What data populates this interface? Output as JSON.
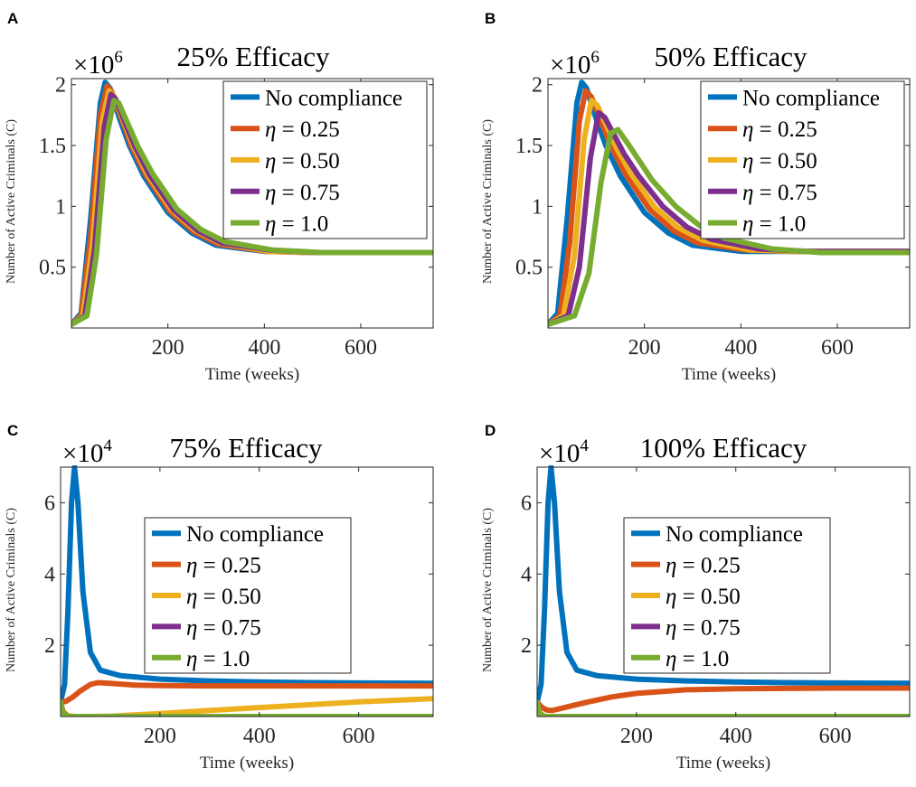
{
  "x_label": "Time (weeks)",
  "y_label": "Number of Active Criminals (C)",
  "colors": {
    "no_compliance": "#0072BD",
    "eta_025": "#D95319",
    "eta_050": "#EDB120",
    "eta_075": "#7E2F8E",
    "eta_100": "#77AC30"
  },
  "chart_data": [
    {
      "panel": "A",
      "type": "line",
      "title": "25% Efficacy",
      "scale_label": "×10",
      "scale_exponent": "6",
      "xlabel": "Time (weeks)",
      "ylabel": "Number of Active Criminals (C)",
      "xlim": [
        0,
        750
      ],
      "ylim": [
        0,
        2.05
      ],
      "xticks": [
        "200",
        "400",
        "600"
      ],
      "yticks": [
        "0.5",
        "1",
        "1.5",
        "2"
      ],
      "legend_position": "top-right",
      "series": [
        {
          "name": "No compliance",
          "color": "#0072BD",
          "x": [
            0,
            20,
            40,
            60,
            70,
            80,
            100,
            120,
            150,
            200,
            250,
            300,
            400,
            500,
            600,
            750
          ],
          "y": [
            0.03,
            0.12,
            0.9,
            1.85,
            2.02,
            1.97,
            1.72,
            1.5,
            1.25,
            0.95,
            0.78,
            0.68,
            0.63,
            0.62,
            0.62,
            0.62
          ]
        },
        {
          "name": "η = 0.25",
          "color": "#D95319",
          "x": [
            0,
            20,
            40,
            60,
            74,
            84,
            104,
            124,
            154,
            204,
            254,
            304,
            404,
            504,
            604,
            750
          ],
          "y": [
            0.03,
            0.1,
            0.75,
            1.75,
            1.99,
            1.94,
            1.72,
            1.5,
            1.26,
            0.96,
            0.79,
            0.69,
            0.63,
            0.62,
            0.62,
            0.62
          ]
        },
        {
          "name": "η = 0.50",
          "color": "#EDB120",
          "x": [
            0,
            24,
            44,
            64,
            78,
            88,
            108,
            128,
            158,
            208,
            258,
            308,
            408,
            508,
            608,
            750
          ],
          "y": [
            0.03,
            0.1,
            0.7,
            1.7,
            1.95,
            1.91,
            1.7,
            1.5,
            1.26,
            0.97,
            0.8,
            0.7,
            0.63,
            0.62,
            0.62,
            0.62
          ]
        },
        {
          "name": "η = 0.75",
          "color": "#7E2F8E",
          "x": [
            0,
            28,
            48,
            68,
            82,
            92,
            112,
            132,
            162,
            212,
            262,
            312,
            412,
            512,
            612,
            750
          ],
          "y": [
            0.03,
            0.1,
            0.65,
            1.65,
            1.92,
            1.88,
            1.68,
            1.49,
            1.26,
            0.97,
            0.8,
            0.7,
            0.64,
            0.62,
            0.62,
            0.62
          ]
        },
        {
          "name": "η = 1.0",
          "color": "#77AC30",
          "x": [
            0,
            32,
            52,
            72,
            88,
            98,
            118,
            138,
            168,
            218,
            268,
            318,
            418,
            518,
            618,
            750
          ],
          "y": [
            0.03,
            0.1,
            0.6,
            1.55,
            1.87,
            1.85,
            1.67,
            1.49,
            1.27,
            0.98,
            0.81,
            0.71,
            0.64,
            0.62,
            0.62,
            0.62
          ]
        }
      ]
    },
    {
      "panel": "B",
      "type": "line",
      "title": "50% Efficacy",
      "scale_label": "×10",
      "scale_exponent": "6",
      "xlabel": "Time (weeks)",
      "ylabel": "Number of Active Criminals (C)",
      "xlim": [
        0,
        750
      ],
      "ylim": [
        0,
        2.05
      ],
      "xticks": [
        "200",
        "400",
        "600"
      ],
      "yticks": [
        "0.5",
        "1",
        "1.5",
        "2"
      ],
      "legend_position": "top-right",
      "series": [
        {
          "name": "No compliance",
          "color": "#0072BD",
          "x": [
            0,
            20,
            40,
            60,
            70,
            80,
            100,
            120,
            150,
            200,
            250,
            300,
            400,
            500,
            600,
            750
          ],
          "y": [
            0.03,
            0.12,
            0.9,
            1.85,
            2.02,
            1.97,
            1.72,
            1.5,
            1.25,
            0.95,
            0.78,
            0.68,
            0.63,
            0.63,
            0.63,
            0.63
          ]
        },
        {
          "name": "η = 0.25",
          "color": "#D95319",
          "x": [
            0,
            25,
            45,
            65,
            78,
            90,
            110,
            130,
            160,
            210,
            260,
            310,
            410,
            510,
            610,
            750
          ],
          "y": [
            0.03,
            0.1,
            0.7,
            1.7,
            1.95,
            1.9,
            1.7,
            1.5,
            1.27,
            0.98,
            0.8,
            0.7,
            0.64,
            0.63,
            0.63,
            0.63
          ]
        },
        {
          "name": "η = 0.50",
          "color": "#EDB120",
          "x": [
            0,
            32,
            55,
            75,
            90,
            102,
            122,
            142,
            172,
            222,
            272,
            322,
            422,
            522,
            622,
            750
          ],
          "y": [
            0.03,
            0.1,
            0.6,
            1.55,
            1.87,
            1.83,
            1.66,
            1.48,
            1.27,
            0.99,
            0.82,
            0.72,
            0.64,
            0.63,
            0.63,
            0.63
          ]
        },
        {
          "name": "η = 0.75",
          "color": "#7E2F8E",
          "x": [
            0,
            42,
            65,
            88,
            105,
            118,
            138,
            158,
            188,
            238,
            288,
            338,
            438,
            538,
            638,
            750
          ],
          "y": [
            0.03,
            0.1,
            0.5,
            1.4,
            1.77,
            1.73,
            1.58,
            1.43,
            1.25,
            1.0,
            0.83,
            0.73,
            0.65,
            0.63,
            0.63,
            0.63
          ]
        },
        {
          "name": "η = 1.0",
          "color": "#77AC30",
          "x": [
            0,
            55,
            85,
            110,
            130,
            145,
            165,
            185,
            215,
            265,
            315,
            365,
            465,
            565,
            665,
            750
          ],
          "y": [
            0.03,
            0.1,
            0.45,
            1.2,
            1.6,
            1.63,
            1.52,
            1.4,
            1.22,
            1.0,
            0.84,
            0.74,
            0.65,
            0.62,
            0.62,
            0.62
          ]
        }
      ]
    },
    {
      "panel": "C",
      "type": "line",
      "title": "75% Efficacy",
      "scale_label": "×10",
      "scale_exponent": "4",
      "xlabel": "Time (weeks)",
      "ylabel": "Number of Active Criminals (C)",
      "xlim": [
        0,
        750
      ],
      "ylim": [
        0,
        7
      ],
      "xticks": [
        "200",
        "400",
        "600"
      ],
      "yticks": [
        "2",
        "4",
        "6"
      ],
      "legend_position": "center",
      "series": [
        {
          "name": "No compliance",
          "color": "#0072BD",
          "x": [
            0,
            8,
            15,
            22,
            28,
            35,
            45,
            60,
            80,
            120,
            200,
            300,
            400,
            500,
            600,
            750
          ],
          "y": [
            0.4,
            0.9,
            3.0,
            6.0,
            7.0,
            6.0,
            3.5,
            1.8,
            1.3,
            1.15,
            1.05,
            1.0,
            0.97,
            0.95,
            0.94,
            0.93
          ]
        },
        {
          "name": "η = 0.25",
          "color": "#D95319",
          "x": [
            0,
            10,
            25,
            40,
            60,
            75,
            100,
            150,
            200,
            300,
            400,
            500,
            600,
            750
          ],
          "y": [
            0.4,
            0.42,
            0.55,
            0.72,
            0.9,
            0.95,
            0.93,
            0.88,
            0.87,
            0.86,
            0.86,
            0.86,
            0.86,
            0.86
          ]
        },
        {
          "name": "η = 0.50",
          "color": "#EDB120",
          "x": [
            0,
            5,
            15,
            30,
            60,
            100,
            200,
            300,
            400,
            500,
            600,
            750
          ],
          "y": [
            0.4,
            0.15,
            0.02,
            0.0,
            0.0,
            0.01,
            0.08,
            0.17,
            0.25,
            0.33,
            0.41,
            0.5
          ]
        },
        {
          "name": "η = 0.75",
          "color": "#7E2F8E",
          "x": [
            0,
            5,
            15,
            30,
            100,
            300,
            500,
            750
          ],
          "y": [
            0.4,
            0.1,
            0.0,
            0.0,
            0.0,
            0.0,
            0.0,
            0.0
          ]
        },
        {
          "name": "η = 1.0",
          "color": "#77AC30",
          "x": [
            0,
            5,
            15,
            30,
            100,
            300,
            500,
            750
          ],
          "y": [
            0.4,
            0.08,
            0.0,
            0.0,
            0.0,
            0.0,
            0.0,
            0.0
          ]
        }
      ]
    },
    {
      "panel": "D",
      "type": "line",
      "title": "100% Efficacy",
      "scale_label": "×10",
      "scale_exponent": "4",
      "xlabel": "Time (weeks)",
      "ylabel": "Number of Active Criminals (C)",
      "xlim": [
        0,
        750
      ],
      "ylim": [
        0,
        7
      ],
      "xticks": [
        "200",
        "400",
        "600"
      ],
      "yticks": [
        "2",
        "4",
        "6"
      ],
      "legend_position": "center",
      "series": [
        {
          "name": "No compliance",
          "color": "#0072BD",
          "x": [
            0,
            8,
            15,
            22,
            28,
            35,
            45,
            60,
            80,
            120,
            200,
            300,
            400,
            500,
            600,
            750
          ],
          "y": [
            0.4,
            0.9,
            3.0,
            6.0,
            7.0,
            6.0,
            3.5,
            1.8,
            1.3,
            1.15,
            1.05,
            1.0,
            0.97,
            0.95,
            0.94,
            0.93
          ]
        },
        {
          "name": "η = 0.25",
          "color": "#D95319",
          "x": [
            0,
            10,
            20,
            30,
            40,
            60,
            100,
            150,
            200,
            300,
            400,
            500,
            600,
            750
          ],
          "y": [
            0.4,
            0.25,
            0.18,
            0.17,
            0.2,
            0.27,
            0.4,
            0.55,
            0.65,
            0.75,
            0.78,
            0.79,
            0.8,
            0.8
          ]
        },
        {
          "name": "η = 0.50",
          "color": "#EDB120",
          "x": [
            0,
            5,
            15,
            30,
            100,
            300,
            500,
            750
          ],
          "y": [
            0.4,
            0.1,
            0.0,
            0.0,
            0.0,
            0.0,
            0.0,
            0.0
          ]
        },
        {
          "name": "η = 0.75",
          "color": "#7E2F8E",
          "x": [
            0,
            5,
            15,
            30,
            100,
            300,
            500,
            750
          ],
          "y": [
            0.4,
            0.09,
            0.0,
            0.0,
            0.0,
            0.0,
            0.0,
            0.0
          ]
        },
        {
          "name": "η = 1.0",
          "color": "#77AC30",
          "x": [
            0,
            5,
            15,
            30,
            100,
            300,
            500,
            750
          ],
          "y": [
            0.4,
            0.08,
            0.0,
            0.0,
            0.0,
            0.0,
            0.0,
            0.0
          ]
        }
      ]
    }
  ]
}
